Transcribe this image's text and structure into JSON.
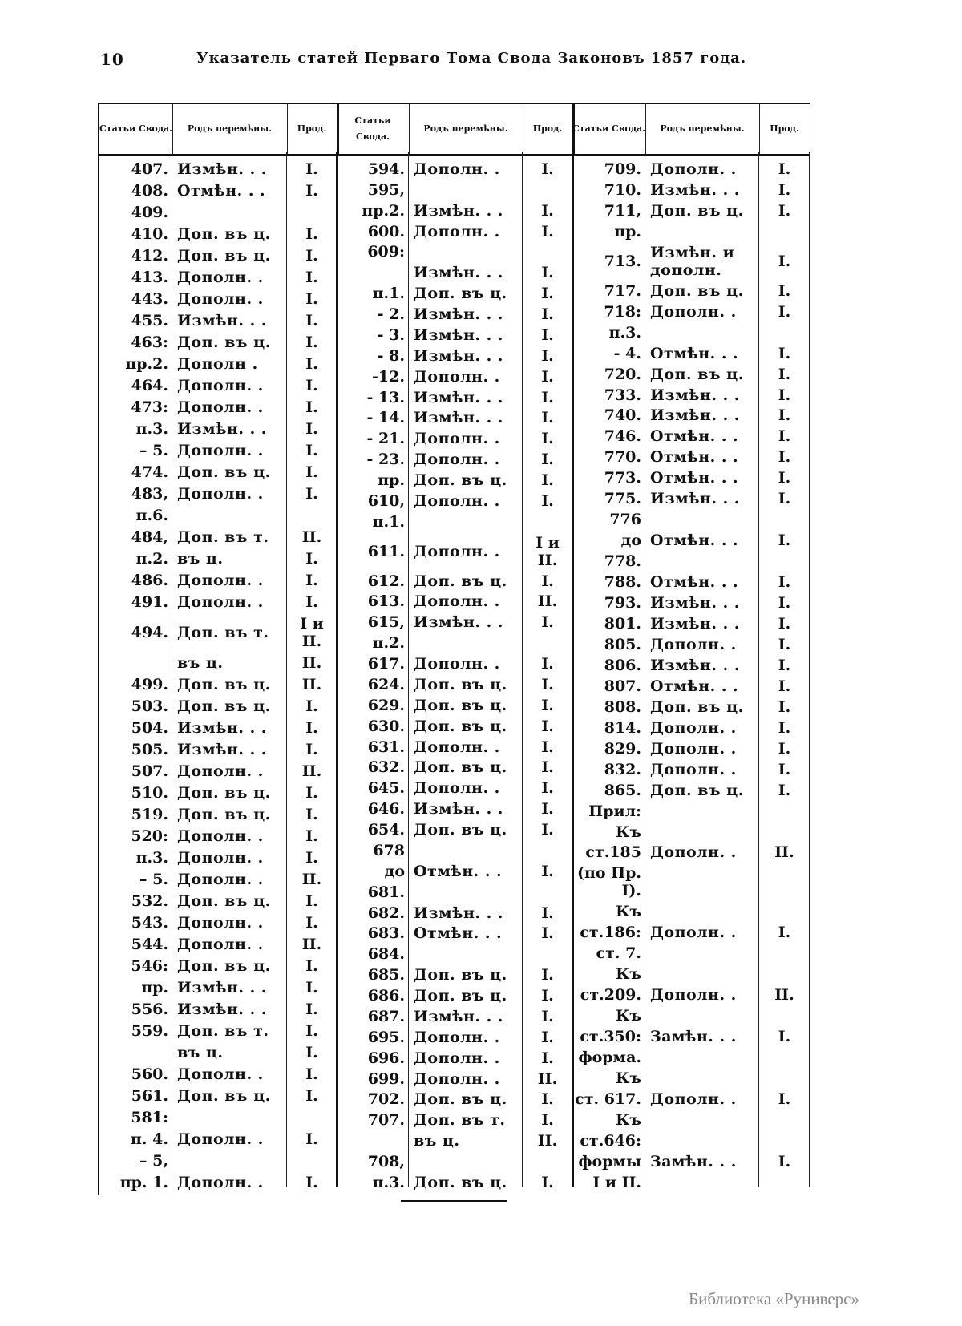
{
  "header": {
    "page_number": "10",
    "title": "Указатель статей Перваго Тома Свода Законовъ 1857 года."
  },
  "columns": {
    "article": "Статьи Свода.",
    "change": "Родъ перемѣны.",
    "prod": "Прод."
  },
  "groups": [
    {
      "rows": [
        [
          "407.",
          "Измѣн. . .",
          "I."
        ],
        [
          "408.",
          "Отмѣн. . .",
          "I."
        ],
        [
          "409.",
          "",
          ""
        ],
        [
          "410.",
          "Доп. въ ц.",
          "I."
        ],
        [
          "412.",
          "Доп. въ ц.",
          "I."
        ],
        [
          "413.",
          "Дополн. .",
          "I."
        ],
        [
          "443.",
          "Дополн. .",
          "I."
        ],
        [
          "455.",
          "Измѣн. . .",
          "I."
        ],
        [
          "463:",
          "Доп. въ ц.",
          "I."
        ],
        [
          "пр.2.",
          "Дополн .",
          "I."
        ],
        [
          "464.",
          "Дополн. .",
          "I."
        ],
        [
          "473:",
          "Дополн. .",
          "I."
        ],
        [
          "п.3.",
          "Измѣн. . .",
          "I."
        ],
        [
          "– 5.",
          "Дополн. .",
          "I."
        ],
        [
          "474.",
          "Доп. въ ц.",
          "I."
        ],
        [
          "483,",
          "Дополн. .",
          "I."
        ],
        [
          "п.6.",
          "",
          ""
        ],
        [
          "484,",
          "Доп. въ т.",
          "II."
        ],
        [
          "п.2.",
          "въ ц.",
          "I."
        ],
        [
          "486.",
          "Дополн. .",
          "I."
        ],
        [
          "491.",
          "Дополн. .",
          "I."
        ],
        [
          "494.",
          "Доп. въ т.",
          "I и II."
        ],
        [
          "",
          "въ ц.",
          "II."
        ],
        [
          "499.",
          "Доп. въ ц.",
          "II."
        ],
        [
          "503.",
          "Доп. въ ц.",
          "I."
        ],
        [
          "504.",
          "Измѣн. . .",
          "I."
        ],
        [
          "505.",
          "Измѣн. . .",
          "I."
        ],
        [
          "507.",
          "Дополн. .",
          "II."
        ],
        [
          "510.",
          "Доп. въ ц.",
          "I."
        ],
        [
          "519.",
          "Доп. въ ц.",
          "I."
        ],
        [
          "520:",
          "Дополн. .",
          "I."
        ],
        [
          "п.3.",
          "Дополн. .",
          "I."
        ],
        [
          "– 5.",
          "Дополн. .",
          "II."
        ],
        [
          "532.",
          "Доп. въ ц.",
          "I."
        ],
        [
          "543.",
          "Дополн. .",
          "I."
        ],
        [
          "544.",
          "Дополн. .",
          "II."
        ],
        [
          "546:",
          "Доп. въ ц.",
          "I."
        ],
        [
          "пр.",
          "Измѣн. . .",
          "I."
        ],
        [
          "556.",
          "Измѣн. . .",
          "I."
        ],
        [
          "559.",
          "Доп. въ т.",
          "I."
        ],
        [
          "",
          "въ ц.",
          "I."
        ],
        [
          "560.",
          "Дополн. .",
          "I."
        ],
        [
          "561.",
          "Доп. въ ц.",
          "I."
        ],
        [
          "581:",
          "",
          ""
        ],
        [
          "п. 4.",
          "Дополн. .",
          "I."
        ],
        [
          "– 5,",
          "",
          ""
        ],
        [
          "пр. 1.",
          "Дополн. .",
          "I."
        ]
      ]
    },
    {
      "rows": [
        [
          "594.",
          "Дополн. .",
          "I."
        ],
        [
          "595,",
          "",
          ""
        ],
        [
          "пр.2.",
          "Измѣн. . .",
          "I."
        ],
        [
          "600.",
          "Дополн. .",
          "I."
        ],
        [
          "609:",
          "",
          ""
        ],
        [
          "",
          "Измѣн. . .",
          "I."
        ],
        [
          "п.1.",
          "Доп. въ ц.",
          "I."
        ],
        [
          "- 2.",
          "Измѣн. . .",
          "I."
        ],
        [
          "- 3.",
          "Измѣн. . .",
          "I."
        ],
        [
          "- 8.",
          "Измѣн. . .",
          "I."
        ],
        [
          "-12.",
          "Дополн. .",
          "I."
        ],
        [
          "- 13.",
          "Измѣн. . .",
          "I."
        ],
        [
          "- 14.",
          "Измѣн. . .",
          "I."
        ],
        [
          "- 21.",
          "Дополн. .",
          "I."
        ],
        [
          "- 23.",
          "Дополн. .",
          "I."
        ],
        [
          "пр.",
          "Доп. въ ц.",
          "I."
        ],
        [
          "610,",
          "Дополн. .",
          "I."
        ],
        [
          "п.1.",
          "",
          ""
        ],
        [
          "611.",
          "Дополн. .",
          "I и II."
        ],
        [
          "612.",
          "Доп. въ ц.",
          "I."
        ],
        [
          "613.",
          "Дополн. .",
          "II."
        ],
        [
          "615,",
          "Измѣн. . .",
          "I."
        ],
        [
          "п.2.",
          "",
          ""
        ],
        [
          "617.",
          "Дополн. .",
          "I."
        ],
        [
          "624.",
          "Доп. въ ц.",
          "I."
        ],
        [
          "629.",
          "Доп. въ ц.",
          "I."
        ],
        [
          "630.",
          "Доп. въ ц.",
          "I."
        ],
        [
          "631.",
          "Дополн. .",
          "I."
        ],
        [
          "632.",
          "Доп. въ ц.",
          "I."
        ],
        [
          "645.",
          "Дополн. .",
          "I."
        ],
        [
          "646.",
          "Измѣн. . .",
          "I."
        ],
        [
          "654.",
          "Доп. въ ц.",
          "I."
        ],
        [
          "678",
          "",
          ""
        ],
        [
          "до",
          "Отмѣн. . .",
          "I."
        ],
        [
          "681.",
          "",
          ""
        ],
        [
          "682.",
          "Измѣн. . .",
          "I."
        ],
        [
          "683.",
          "Отмѣн. . .",
          "I."
        ],
        [
          "684.",
          "",
          ""
        ],
        [
          "685.",
          "Доп. въ ц.",
          "I."
        ],
        [
          "686.",
          "Доп. въ ц.",
          "I."
        ],
        [
          "687.",
          "Измѣн. . .",
          "I."
        ],
        [
          "695.",
          "Дополн. .",
          "I."
        ],
        [
          "696.",
          "Дополн. .",
          "I."
        ],
        [
          "699.",
          "Дополн. .",
          "II."
        ],
        [
          "702.",
          "Доп. въ ц.",
          "I."
        ],
        [
          "707.",
          "Доп. въ т.",
          "I."
        ],
        [
          "",
          "въ ц.",
          "II."
        ],
        [
          "708,",
          "",
          ""
        ],
        [
          "п.3.",
          "Доп. въ ц.",
          "I."
        ]
      ]
    },
    {
      "rows": [
        [
          "709.",
          "Дополн. .",
          "I."
        ],
        [
          "710.",
          "Измѣн. . .",
          "I."
        ],
        [
          "711,",
          "Доп. въ ц.",
          "I."
        ],
        [
          "пр.",
          "",
          ""
        ],
        [
          "713.",
          "Измѣн. и дополн.",
          "I."
        ],
        [
          "717.",
          "Доп. въ ц.",
          "I."
        ],
        [
          "718:",
          "Дополн. .",
          "I."
        ],
        [
          "п.3.",
          "",
          ""
        ],
        [
          "- 4.",
          "Отмѣн. . .",
          "I."
        ],
        [
          "720.",
          "Доп. въ ц.",
          "I."
        ],
        [
          "733.",
          "Измѣн. . .",
          "I."
        ],
        [
          "740.",
          "Измѣн. . .",
          "I."
        ],
        [
          "746.",
          "Отмѣн. . .",
          "I."
        ],
        [
          "770.",
          "Отмѣн. . .",
          "I."
        ],
        [
          "773.",
          "Отмѣн. . .",
          "I."
        ],
        [
          "775.",
          "Измѣн. . .",
          "I."
        ],
        [
          "776",
          "",
          ""
        ],
        [
          "до",
          "Отмѣн. . .",
          "I."
        ],
        [
          "778.",
          "",
          ""
        ],
        [
          "788.",
          "Отмѣн. . .",
          "I."
        ],
        [
          "793.",
          "Измѣн. . .",
          "I."
        ],
        [
          "801.",
          "Измѣн. . .",
          "I."
        ],
        [
          "805.",
          "Дополн. .",
          "I."
        ],
        [
          "806.",
          "Измѣн. . .",
          "I."
        ],
        [
          "807.",
          "Отмѣн. . .",
          "I."
        ],
        [
          "808.",
          "Доп. въ ц.",
          "I."
        ],
        [
          "814.",
          "Дополн. .",
          "I."
        ],
        [
          "829.",
          "Дополн. .",
          "I."
        ],
        [
          "832.",
          "Дополн. .",
          "I."
        ],
        [
          "865.",
          "Доп. въ ц.",
          "I."
        ],
        [
          "Прил:",
          "",
          ""
        ],
        [
          "Къ",
          "",
          ""
        ],
        [
          "ст.185",
          "Дополн. .",
          "II."
        ],
        [
          "(по Пр. I).",
          "",
          ""
        ],
        [
          "Къ",
          "",
          ""
        ],
        [
          "ст.186:",
          "Дополн. .",
          "I."
        ],
        [
          "ст. 7.",
          "",
          ""
        ],
        [
          "Къ",
          "",
          ""
        ],
        [
          "ст.209.",
          "Дополн. .",
          "II."
        ],
        [
          "Къ",
          "",
          ""
        ],
        [
          "ст.350:",
          "Замѣн. . .",
          "I."
        ],
        [
          "форма.",
          "",
          ""
        ],
        [
          "Къ",
          "",
          ""
        ],
        [
          "ст. 617.",
          "Дополн. .",
          "I."
        ],
        [
          "Къ",
          "",
          ""
        ],
        [
          "ст.646:",
          "",
          ""
        ],
        [
          "формы",
          "Замѣн. . .",
          "I."
        ],
        [
          "I и II.",
          "",
          ""
        ]
      ]
    }
  ],
  "watermark": "Библиотека «Руниверс»"
}
